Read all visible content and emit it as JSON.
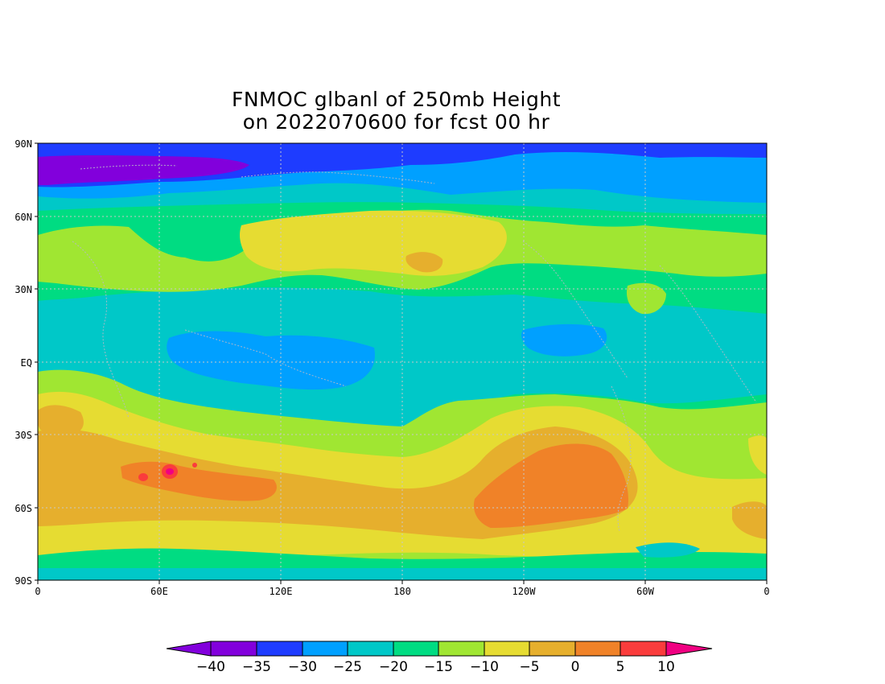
{
  "title": {
    "line1": "FNMOC glbanl of 250mb Height",
    "line2": "on 2022070600 for fcst 00 hr"
  },
  "map": {
    "lat_labels": [
      "90N",
      "60N",
      "30N",
      "EQ",
      "30S",
      "60S",
      "90S"
    ],
    "lon_labels": [
      "0",
      "60E",
      "120E",
      "180",
      "120W",
      "60W",
      "0"
    ]
  },
  "colorbar": {
    "ticks": [
      "−40",
      "−35",
      "−30",
      "−25",
      "−20",
      "−15",
      "−10",
      "−5",
      "0",
      "5",
      "10"
    ],
    "colors": [
      "#8200dc",
      "#1e3cff",
      "#00a0ff",
      "#00c8c8",
      "#00dc82",
      "#a0e632",
      "#e6dc32",
      "#e6af2d",
      "#f08228",
      "#fa3c3c",
      "#f00082"
    ]
  },
  "field_colors": {
    "minus40": "#8200dc",
    "minus35": "#1e3cff",
    "minus30": "#00a0ff",
    "minus25": "#00c8c8",
    "minus20": "#00dc82",
    "minus15": "#a0e632",
    "minus10": "#e6dc32",
    "minus5": "#e6af2d",
    "zero": "#f08228",
    "plus5": "#fa3c3c",
    "plus10": "#f00082"
  }
}
